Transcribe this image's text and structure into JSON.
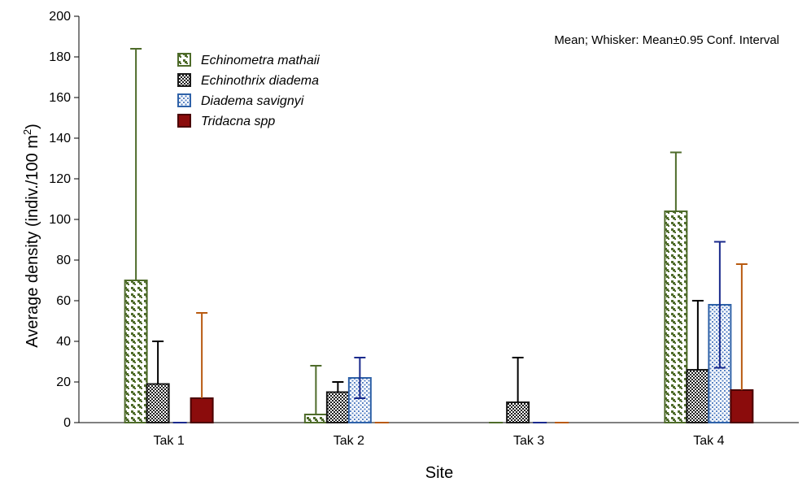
{
  "chart_data": {
    "type": "bar",
    "title": "",
    "annotation": "Mean; Whisker: Mean±0.95 Conf. Interval",
    "xlabel": "Site",
    "ylabel_main": "Average density (indiv./100 m",
    "ylabel_sup": "2",
    "ylabel_close": ")",
    "ylim": [
      0,
      200
    ],
    "yticks": [
      0,
      20,
      40,
      60,
      80,
      100,
      120,
      140,
      160,
      180,
      200
    ],
    "categories": [
      "Tak 1",
      "Tak 2",
      "Tak 3",
      "Tak 4"
    ],
    "legend_position": "top-left",
    "grid": false,
    "series": [
      {
        "name": "Echinometra mathaii",
        "pattern": "stitch",
        "color": "#4e6b2a",
        "values": [
          70,
          4,
          0,
          104
        ],
        "err_high": [
          184,
          28,
          0,
          133
        ]
      },
      {
        "name": "Echinothrix diadema",
        "pattern": "checker",
        "color": "#1a1a1a",
        "values": [
          19,
          15,
          10,
          26
        ],
        "err_high": [
          40,
          20,
          32,
          60
        ]
      },
      {
        "name": "Diadema savignyi",
        "pattern": "grid",
        "color": "#2f62a8",
        "values": [
          0,
          22,
          0,
          58
        ],
        "err_high": [
          0,
          32,
          0,
          89
        ],
        "err_low": [
          0,
          12,
          0,
          27
        ]
      },
      {
        "name": "Tridacna spp",
        "pattern": "solid",
        "color": "#8b0c0c",
        "values": [
          12,
          0,
          0,
          16
        ],
        "err_high": [
          54,
          0,
          0,
          78
        ]
      }
    ],
    "whisker_colors": [
      "#4e6b2a",
      "#000000",
      "#1a2a8c",
      "#b85a10"
    ]
  }
}
